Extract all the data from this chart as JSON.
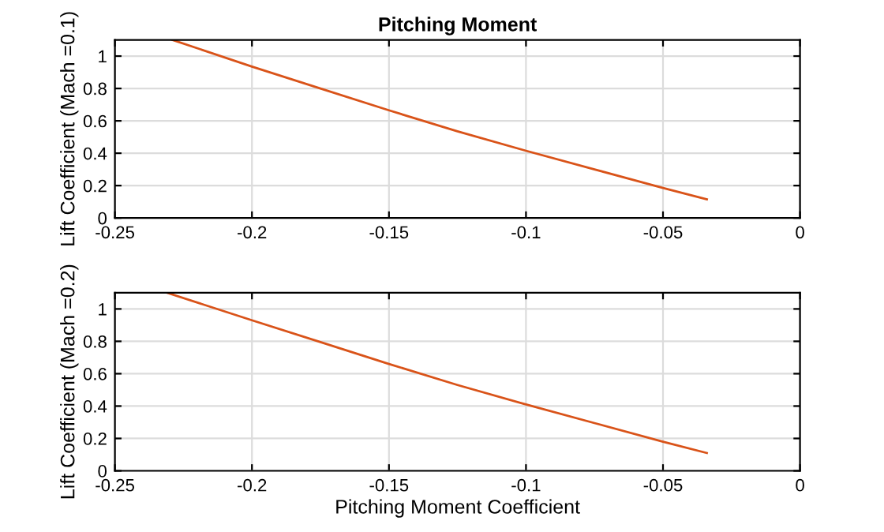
{
  "chart_data": [
    {
      "type": "line",
      "title": "Pitching Moment",
      "ylabel": "Lift Coefficient (Mach =0.1)",
      "xlim": [
        -0.25,
        0
      ],
      "xticks": [
        -0.25,
        -0.2,
        -0.15,
        -0.1,
        -0.05,
        0
      ],
      "ylim": [
        0,
        1.1
      ],
      "yticks": [
        0,
        0.2,
        0.4,
        0.6,
        0.8,
        1
      ],
      "grid": true,
      "series": [
        {
          "color": "#d95319",
          "x": [
            -0.229,
            -0.2,
            -0.175,
            -0.15,
            -0.125,
            -0.1,
            -0.075,
            -0.05,
            -0.034
          ],
          "values": [
            1.1,
            0.935,
            0.8,
            0.665,
            0.535,
            0.415,
            0.3,
            0.185,
            0.115
          ]
        }
      ]
    },
    {
      "type": "line",
      "ylabel": "Lift Coefficient (Mach =0.2)",
      "xlabel": "Pitching Moment Coefficient",
      "xlim": [
        -0.25,
        0
      ],
      "xticks": [
        -0.25,
        -0.2,
        -0.15,
        -0.1,
        -0.05,
        0
      ],
      "ylim": [
        0,
        1.1
      ],
      "yticks": [
        0,
        0.2,
        0.4,
        0.6,
        0.8,
        1
      ],
      "grid": true,
      "series": [
        {
          "color": "#d95319",
          "x": [
            -0.231,
            -0.2,
            -0.175,
            -0.15,
            -0.125,
            -0.1,
            -0.075,
            -0.05,
            -0.034
          ],
          "values": [
            1.1,
            0.93,
            0.795,
            0.66,
            0.53,
            0.41,
            0.295,
            0.18,
            0.11
          ]
        }
      ]
    }
  ]
}
